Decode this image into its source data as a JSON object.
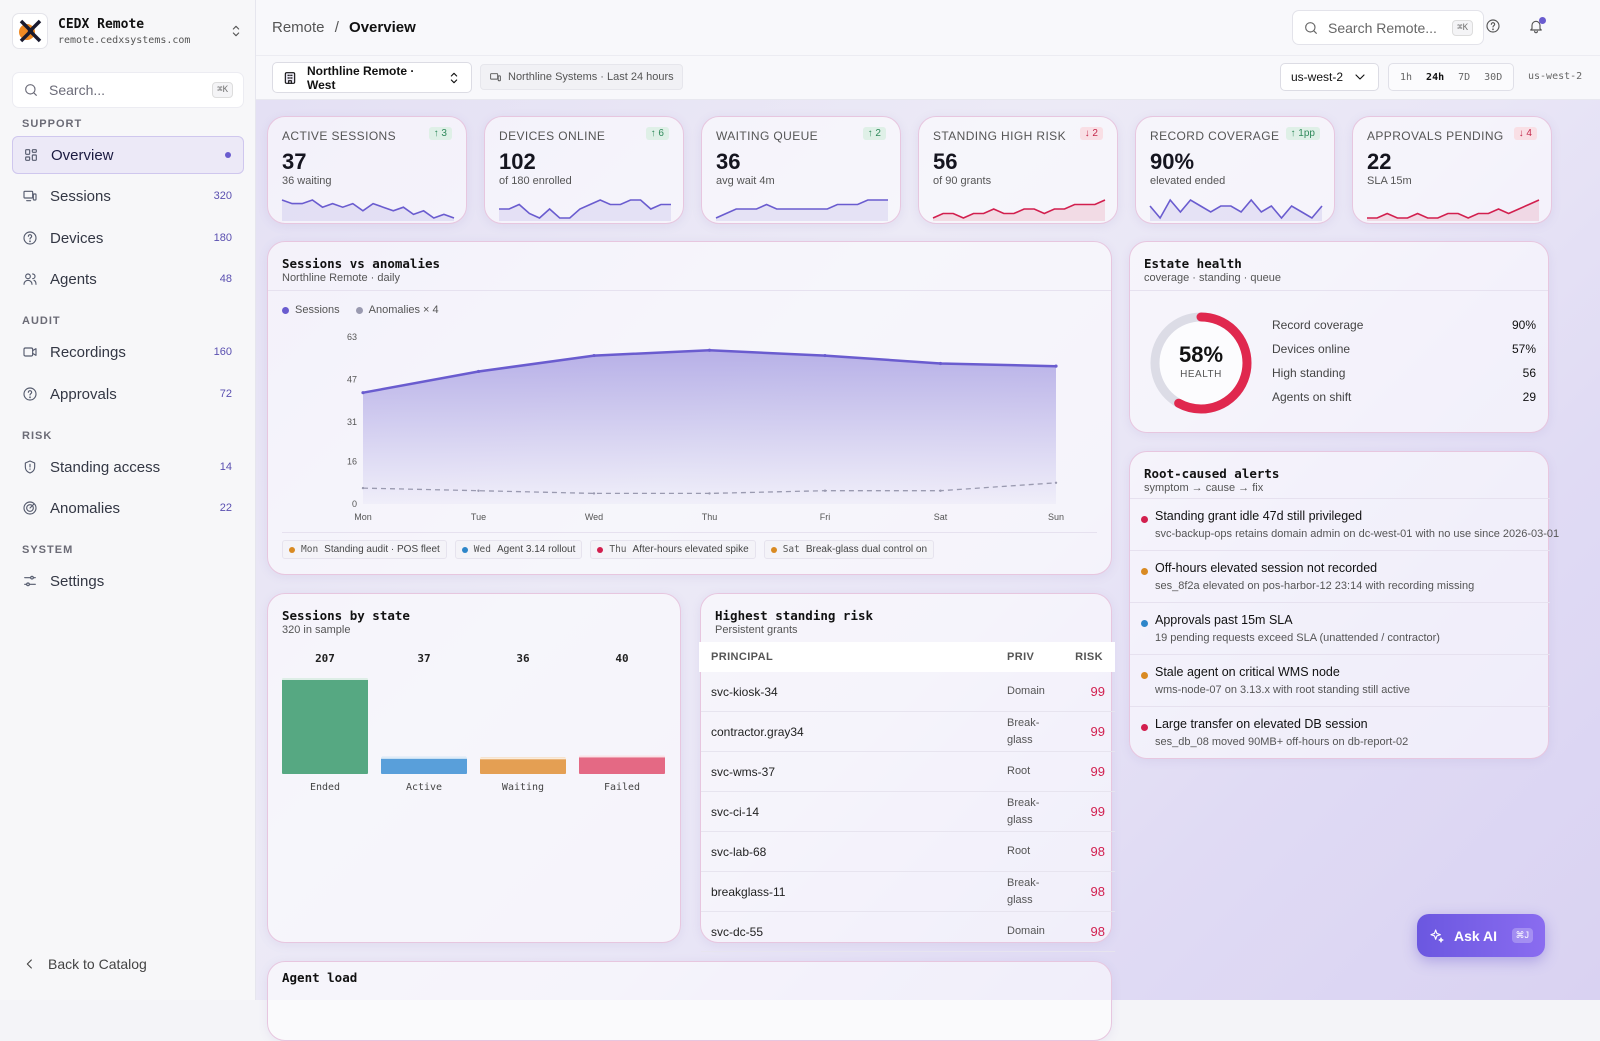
{
  "brand": {
    "name": "CEDX Remote",
    "url": "remote.cedxsystems.com"
  },
  "sidebar": {
    "search_placeholder": "Search...",
    "search_shortcut": "⌘K",
    "sections": {
      "support": "SUPPORT",
      "audit": "AUDIT",
      "risk": "RISK",
      "system": "SYSTEM"
    },
    "items": [
      {
        "label": "Overview",
        "icon": "grid-icon",
        "count": ""
      },
      {
        "label": "Sessions",
        "icon": "monitor-icon",
        "count": "320"
      },
      {
        "label": "Devices",
        "icon": "help-circle-icon",
        "count": "180"
      },
      {
        "label": "Agents",
        "icon": "users-icon",
        "count": "48"
      },
      {
        "label": "Recordings",
        "icon": "video-icon",
        "count": "160"
      },
      {
        "label": "Approvals",
        "icon": "help-circle-icon",
        "count": "72"
      },
      {
        "label": "Standing access",
        "icon": "shield-icon",
        "count": "14"
      },
      {
        "label": "Anomalies",
        "icon": "radar-icon",
        "count": "22"
      },
      {
        "label": "Settings",
        "icon": "sliders-icon",
        "count": ""
      }
    ],
    "back_label": "Back to Catalog"
  },
  "header": {
    "breadcrumb_root": "Remote",
    "breadcrumb_sep": "/",
    "breadcrumb_current": "Overview",
    "search_placeholder": "Search Remote...",
    "search_shortcut": "⌘K"
  },
  "filters": {
    "workspace": "Northline Remote · West",
    "org": "Northline Systems · Last 24 hours",
    "region": "us-west-2",
    "ranges": [
      "1h",
      "24h",
      "7D",
      "30D"
    ],
    "active_range": "24h",
    "region_label": "us-west-2"
  },
  "colors": {
    "accent": "#6a5ccf",
    "danger": "#d21f4e",
    "success": "#2f8a5b",
    "warning": "#d98a22",
    "info": "#2e86c9"
  },
  "kpis": [
    {
      "label": "ACTIVE SESSIONS",
      "value": "37",
      "sub": "36 waiting",
      "delta": "↑ 3",
      "dir": "up",
      "spark": [
        6,
        5,
        5,
        6,
        4,
        5,
        4,
        5,
        3,
        5,
        4,
        3,
        4,
        2,
        3,
        1,
        2,
        1
      ],
      "color": "#6a5ccf"
    },
    {
      "label": "DEVICES ONLINE",
      "value": "102",
      "sub": "of 180 enrolled",
      "delta": "↑ 6",
      "dir": "up",
      "spark": [
        3,
        3,
        4,
        2,
        1,
        3,
        1,
        1,
        3,
        4,
        5,
        4,
        4,
        5,
        5,
        3,
        4,
        4
      ],
      "color": "#6a5ccf"
    },
    {
      "label": "WAITING QUEUE",
      "value": "36",
      "sub": "avg wait 4m",
      "delta": "↑ 2",
      "dir": "up",
      "spark": [
        1,
        2,
        3,
        3,
        3,
        4,
        3,
        3,
        3,
        3,
        3,
        3,
        4,
        4,
        4,
        5,
        5,
        5
      ],
      "color": "#6a5ccf"
    },
    {
      "label": "STANDING HIGH RISK",
      "value": "56",
      "sub": "of 90 grants",
      "delta": "↓ 2",
      "dir": "down",
      "spark": [
        1,
        2,
        2,
        1,
        2,
        2,
        3,
        2,
        2,
        3,
        3,
        2,
        3,
        3,
        4,
        4,
        4,
        5
      ],
      "color": "#d21f4e"
    },
    {
      "label": "RECORD COVERAGE",
      "value": "90%",
      "sub": "elevated ended",
      "delta": "↑ 1pp",
      "dir": "up",
      "spark": [
        4,
        2,
        5,
        3,
        5,
        4,
        3,
        4,
        4,
        3,
        5,
        3,
        4,
        2,
        4,
        3,
        2,
        4
      ],
      "color": "#6a5ccf"
    },
    {
      "label": "APPROVALS PENDING",
      "value": "22",
      "sub": "SLA 15m",
      "delta": "↓ 4",
      "dir": "down",
      "spark": [
        2,
        2,
        3,
        2,
        2,
        3,
        2,
        2,
        3,
        3,
        2,
        3,
        3,
        4,
        3,
        4,
        5,
        6
      ],
      "color": "#d21f4e"
    }
  ],
  "sessions_chart": {
    "title": "Sessions vs anomalies",
    "subtitle": "Northline Remote · daily",
    "legend": [
      {
        "name": "Sessions",
        "color": "#6a5ccf"
      },
      {
        "name": "Anomalies × 4",
        "color": "#9a9ab0"
      }
    ],
    "annotations": [
      {
        "day": "Mon",
        "text": "Standing audit · POS fleet",
        "color": "#d98a22"
      },
      {
        "day": "Wed",
        "text": "Agent 3.14 rollout",
        "color": "#2e86c9"
      },
      {
        "day": "Thu",
        "text": "After-hours elevated spike",
        "color": "#d21f4e"
      },
      {
        "day": "Sat",
        "text": "Break-glass dual control on",
        "color": "#d98a22"
      }
    ]
  },
  "state_chart": {
    "title": "Sessions by state",
    "subtitle": "320 in sample"
  },
  "chart_data": [
    {
      "type": "area",
      "title": "Sessions vs anomalies",
      "subtitle": "Northline Remote · daily",
      "categories": [
        "Mon",
        "Tue",
        "Wed",
        "Thu",
        "Fri",
        "Sat",
        "Sun"
      ],
      "ylim": [
        0,
        63
      ],
      "yticks": [
        0,
        16,
        31,
        47,
        63
      ],
      "series": [
        {
          "name": "Sessions",
          "values": [
            42,
            50,
            56,
            58,
            56,
            53,
            52
          ],
          "color": "#6a5ccf"
        },
        {
          "name": "Anomalies × 4",
          "values": [
            6,
            5,
            4,
            4,
            5,
            5,
            8
          ],
          "color": "#9a9ab0"
        }
      ],
      "legend": "top-left",
      "grid": false
    },
    {
      "type": "bar",
      "title": "Sessions by state",
      "subtitle": "320 in sample",
      "categories": [
        "Ended",
        "Active",
        "Waiting",
        "Failed"
      ],
      "values": [
        207,
        37,
        36,
        40
      ],
      "colors": [
        "#3a9a6c",
        "#3d8fd4",
        "#e08f35",
        "#e0506e"
      ]
    }
  ],
  "risk_table": {
    "title": "Highest standing risk",
    "subtitle": "Persistent grants",
    "headers": [
      "PRINCIPAL",
      "PRIV",
      "RISK"
    ],
    "rows": [
      {
        "principal": "svc-kiosk-34",
        "priv": "Domain",
        "risk": "99"
      },
      {
        "principal": "contractor.gray34",
        "priv": "Break-glass",
        "risk": "99"
      },
      {
        "principal": "svc-wms-37",
        "priv": "Root",
        "risk": "99"
      },
      {
        "principal": "svc-ci-14",
        "priv": "Break-glass",
        "risk": "99"
      },
      {
        "principal": "svc-lab-68",
        "priv": "Root",
        "risk": "98"
      },
      {
        "principal": "breakglass-11",
        "priv": "Break-glass",
        "risk": "98"
      },
      {
        "principal": "svc-dc-55",
        "priv": "Domain",
        "risk": "98"
      }
    ]
  },
  "health": {
    "title": "Estate health",
    "subtitle": "coverage · standing · queue",
    "score": "58%",
    "score_value": 0.58,
    "score_label": "HEALTH",
    "rows": [
      {
        "label": "Record coverage",
        "value": "90%"
      },
      {
        "label": "Devices online",
        "value": "57%"
      },
      {
        "label": "High standing",
        "value": "56"
      },
      {
        "label": "Agents on shift",
        "value": "29"
      }
    ]
  },
  "alerts": {
    "title": "Root-caused alerts",
    "subtitle": "symptom → cause → fix",
    "items": [
      {
        "title": "Standing grant idle 47d still privileged",
        "detail": "svc-backup-ops retains domain admin on dc-west-01 with no use since 2026-03-01",
        "color": "#d21f4e"
      },
      {
        "title": "Off-hours elevated session not recorded",
        "detail": "ses_8f2a elevated on pos-harbor-12 23:14 with recording missing",
        "color": "#d98a22"
      },
      {
        "title": "Approvals past 15m SLA",
        "detail": "19 pending requests exceed SLA (unattended / contractor)",
        "color": "#2e86c9"
      },
      {
        "title": "Stale agent on critical WMS node",
        "detail": "wms-node-07 on 3.13.x with root standing still active",
        "color": "#d98a22"
      },
      {
        "title": "Large transfer on elevated DB session",
        "detail": "ses_db_08 moved 90MB+ off-hours on db-report-02",
        "color": "#d21f4e"
      }
    ]
  },
  "agent_load": {
    "title": "Agent load"
  },
  "ask_ai": {
    "label": "Ask AI",
    "shortcut": "⌘J"
  }
}
